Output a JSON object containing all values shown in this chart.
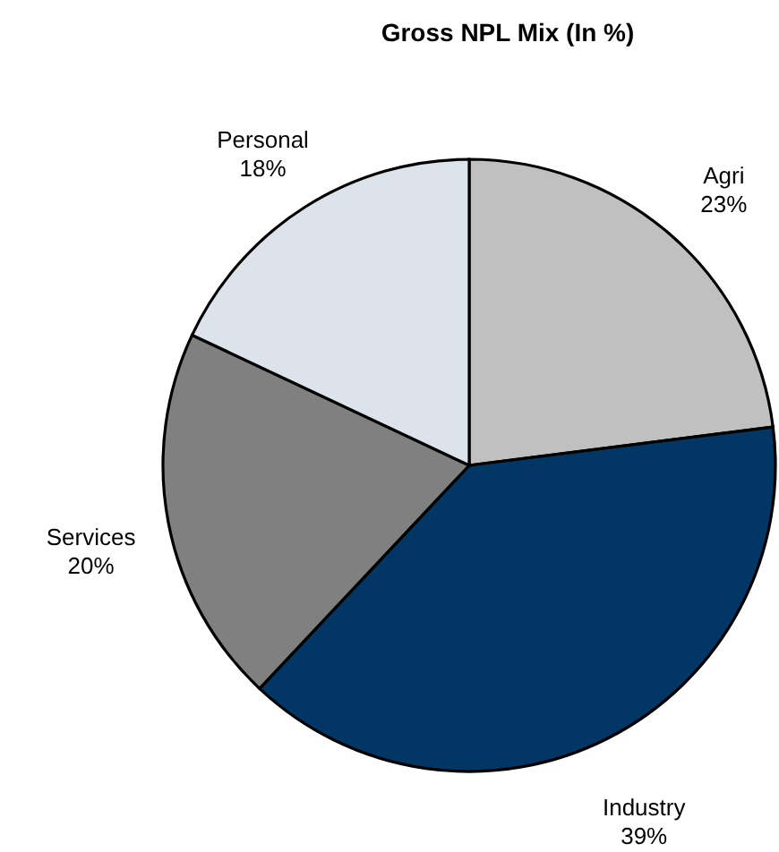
{
  "chart_data": {
    "type": "pie",
    "title": "Gross NPL Mix (In %)",
    "categories": [
      "Agri",
      "Industry",
      "Services",
      "Personal"
    ],
    "values": [
      23,
      39,
      20,
      18
    ],
    "value_labels": [
      "23%",
      "39%",
      "20%",
      "18%"
    ],
    "colors": [
      "#c0c0c0",
      "#023665",
      "#808080",
      "#dce3ea"
    ]
  }
}
